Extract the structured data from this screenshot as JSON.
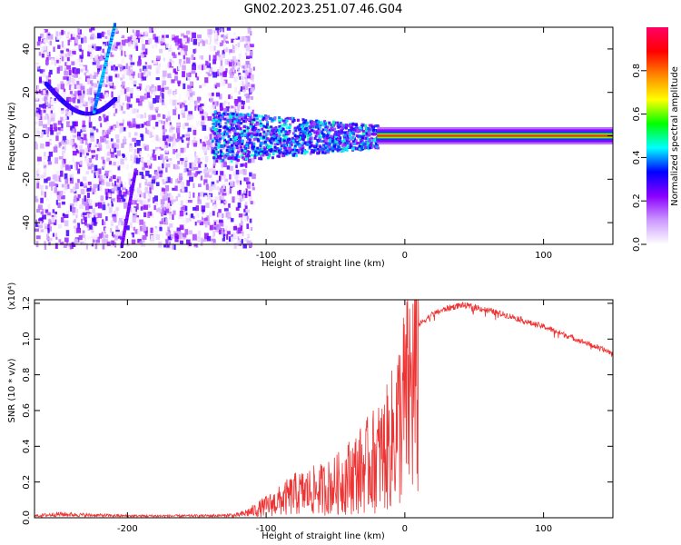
{
  "title": "GN02.2023.251.07.46.G04",
  "chart_data": [
    {
      "type": "heatmap",
      "xlabel": "Height of straight line (km)",
      "ylabel": "Frequency (Hz)",
      "xlim": [
        -267,
        150
      ],
      "ylim": [
        -50,
        50
      ],
      "xticks": [
        -200,
        -100,
        0,
        100
      ],
      "yticks": [
        -40,
        -20,
        0,
        20,
        40
      ],
      "colorbar": {
        "label": "Normalized spectral amplitude",
        "ticks": [
          "0.0",
          "0.2",
          "0.4",
          "0.6",
          "0.8"
        ],
        "range": [
          0,
          1
        ],
        "colormap": [
          "#ffffff",
          "#cc99ff",
          "#8b00ff",
          "#0000ff",
          "#00ffff",
          "#00ff00",
          "#ffff00",
          "#ff8800",
          "#ff0000",
          "#ff0066"
        ]
      },
      "features": {
        "steady_carrier_frequency_hz": 0,
        "carrier_band_halfwidth_hz": 4,
        "carrier_stable_from_km": -20,
        "noise_region_until_km": -130
      }
    },
    {
      "type": "line",
      "xlabel": "Height of straight line (km)",
      "ylabel": "SNR (10 * v/v)",
      "scale_label": "(x10⁴)",
      "xlim": [
        -267,
        150
      ],
      "ylim": [
        0,
        1.22
      ],
      "xticks": [
        -200,
        -100,
        0,
        100
      ],
      "yticks": [
        "0.0",
        "0.2",
        "0.4",
        "0.6",
        "0.8",
        "1.0",
        "1.2"
      ],
      "series": [
        {
          "color": "#ee3333",
          "x": [
            -267,
            -250,
            -230,
            -200,
            -160,
            -130,
            -120,
            -110,
            -100,
            -90,
            -80,
            -70,
            -60,
            -50,
            -40,
            -30,
            -25,
            -20,
            -15,
            -10,
            -5,
            0,
            5,
            10,
            20,
            30,
            40,
            50,
            60,
            70,
            80,
            90,
            100,
            110,
            120,
            130,
            140,
            150
          ],
          "y": [
            0.01,
            0.02,
            0.015,
            0.01,
            0.01,
            0.012,
            0.02,
            0.05,
            0.09,
            0.13,
            0.18,
            0.2,
            0.22,
            0.25,
            0.32,
            0.38,
            0.42,
            0.46,
            0.5,
            0.58,
            0.72,
            0.88,
            1.0,
            1.08,
            1.14,
            1.17,
            1.19,
            1.18,
            1.16,
            1.14,
            1.12,
            1.09,
            1.07,
            1.04,
            1.01,
            0.98,
            0.95,
            0.92
          ]
        }
      ]
    }
  ]
}
